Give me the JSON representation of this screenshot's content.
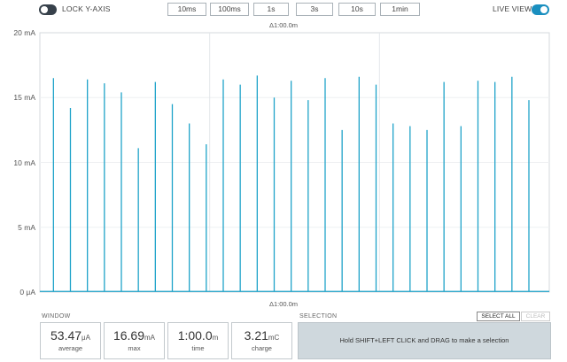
{
  "toolbar": {
    "lock_label": "LOCK Y-AXIS",
    "lock_on": false,
    "time_buttons": [
      "10ms",
      "100ms",
      "1s",
      "3s",
      "10s",
      "1min"
    ],
    "live_label": "LIVE VIEW",
    "live_on": true
  },
  "plot": {
    "delta_top": "Δ1:00.0m",
    "delta_bottom": "Δ1:00.0m",
    "y_ticks": [
      "20 mA",
      "15 mA",
      "10 mA",
      "5 mA",
      "0 μA"
    ],
    "line_color": "#1fa3c9"
  },
  "chart_data": {
    "type": "line",
    "xlabel": "",
    "ylabel": "",
    "xlim": [
      0,
      60
    ],
    "ylim": [
      0,
      20
    ],
    "y_unit": "mA",
    "series": [
      {
        "name": "",
        "spikes_x_s": [
          1.6,
          3.6,
          5.6,
          7.6,
          9.6,
          11.6,
          13.6,
          15.6,
          17.6,
          19.6,
          21.6,
          23.6,
          25.6,
          27.6,
          29.6,
          31.6,
          33.6,
          35.6,
          37.6,
          39.6,
          41.6,
          43.6,
          45.6,
          47.6,
          49.6,
          51.6,
          53.6,
          55.6,
          57.6
        ],
        "spikes_y_mA": [
          16.5,
          14.2,
          16.4,
          16.1,
          15.4,
          11.1,
          16.2,
          14.5,
          13.0,
          11.4,
          16.4,
          16.0,
          16.7,
          15.0,
          16.3,
          14.8,
          16.5,
          12.5,
          16.6,
          16.0,
          13.0,
          12.8,
          12.5,
          16.2,
          12.8,
          16.3,
          16.2,
          16.6,
          14.8
        ],
        "baseline_mA": 0.05
      }
    ]
  },
  "window": {
    "title": "WINDOW",
    "stats": [
      {
        "value": "53.47",
        "unit": "μA",
        "label": "average"
      },
      {
        "value": "16.69",
        "unit": "mA",
        "label": "max"
      },
      {
        "value": "1:00.0",
        "unit": "m",
        "label": "time"
      },
      {
        "value": "3.21",
        "unit": "mC",
        "label": "charge"
      }
    ]
  },
  "selection": {
    "title": "SELECTION",
    "select_all": "SELECT ALL",
    "clear": "CLEAR",
    "hint": "Hold SHIFT+LEFT CLICK and DRAG to make a selection"
  }
}
